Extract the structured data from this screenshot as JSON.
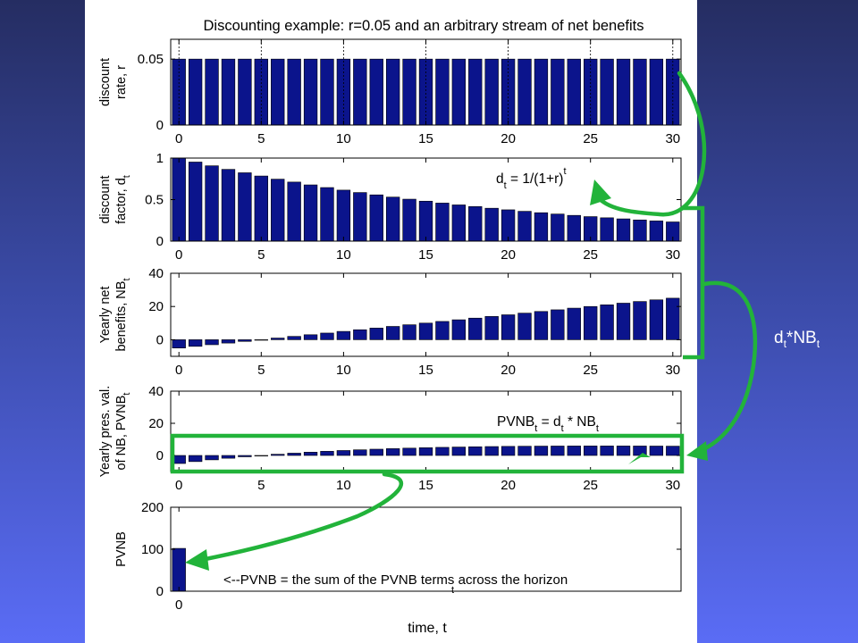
{
  "figure": {
    "title": "Discounting example: r=0.05 and an arbitrary stream of net benefits",
    "xlabel": "time, t",
    "side_label": {
      "main": "d",
      "sub1": "t",
      "mid": "*NB",
      "sub2": "t"
    }
  },
  "colors": {
    "bar": "#0b148c",
    "arrow": "#22b33a",
    "background_top": "#252d62",
    "background_bottom": "#5a6cf5",
    "panel": "#ffffff"
  },
  "chart_data": [
    {
      "type": "bar",
      "ylabel": [
        "discount",
        "rate, r"
      ],
      "x": [
        0,
        1,
        2,
        3,
        4,
        5,
        6,
        7,
        8,
        9,
        10,
        11,
        12,
        13,
        14,
        15,
        16,
        17,
        18,
        19,
        20,
        21,
        22,
        23,
        24,
        25,
        26,
        27,
        28,
        29,
        30
      ],
      "values": [
        0.05,
        0.05,
        0.05,
        0.05,
        0.05,
        0.05,
        0.05,
        0.05,
        0.05,
        0.05,
        0.05,
        0.05,
        0.05,
        0.05,
        0.05,
        0.05,
        0.05,
        0.05,
        0.05,
        0.05,
        0.05,
        0.05,
        0.05,
        0.05,
        0.05,
        0.05,
        0.05,
        0.05,
        0.05,
        0.05,
        0.05
      ],
      "xlim": [
        -0.5,
        30.5
      ],
      "ylim": [
        0,
        0.065
      ],
      "yticks": [
        0,
        0.05
      ],
      "ytick_labels": [
        "0",
        "0.05"
      ],
      "xticks": [
        0,
        5,
        10,
        15,
        20,
        25,
        30
      ],
      "xtick_labels": [
        "0",
        "5",
        "10",
        "15",
        "20",
        "25",
        "30"
      ],
      "vlines": [
        0,
        5,
        10,
        15,
        20,
        25,
        30
      ]
    },
    {
      "type": "bar",
      "ylabel": [
        "discount",
        "factor, d"
      ],
      "ylabel_sub": "t",
      "x": [
        0,
        1,
        2,
        3,
        4,
        5,
        6,
        7,
        8,
        9,
        10,
        11,
        12,
        13,
        14,
        15,
        16,
        17,
        18,
        19,
        20,
        21,
        22,
        23,
        24,
        25,
        26,
        27,
        28,
        29,
        30
      ],
      "values": [
        1.0,
        0.952,
        0.907,
        0.864,
        0.823,
        0.784,
        0.746,
        0.711,
        0.677,
        0.645,
        0.614,
        0.585,
        0.557,
        0.53,
        0.505,
        0.481,
        0.458,
        0.436,
        0.416,
        0.396,
        0.377,
        0.359,
        0.342,
        0.326,
        0.31,
        0.295,
        0.281,
        0.268,
        0.255,
        0.243,
        0.231
      ],
      "xlim": [
        -0.5,
        30.5
      ],
      "ylim": [
        0,
        1
      ],
      "yticks": [
        0,
        0.5,
        1
      ],
      "ytick_labels": [
        "0",
        "0.5",
        "1"
      ],
      "xticks": [
        0,
        5,
        10,
        15,
        20,
        25,
        30
      ],
      "xtick_labels": [
        "0",
        "5",
        "10",
        "15",
        "20",
        "25",
        "30"
      ],
      "annotation": {
        "a": "d",
        "a_sub": "t",
        "b": " = 1/(1+r)",
        "b_sup": "t",
        "c": ""
      }
    },
    {
      "type": "bar",
      "ylabel": [
        "Yearly net",
        "benefits, NB"
      ],
      "ylabel_sub": "t",
      "x": [
        0,
        1,
        2,
        3,
        4,
        5,
        6,
        7,
        8,
        9,
        10,
        11,
        12,
        13,
        14,
        15,
        16,
        17,
        18,
        19,
        20,
        21,
        22,
        23,
        24,
        25,
        26,
        27,
        28,
        29,
        30
      ],
      "values": [
        -5,
        -4,
        -3,
        -2,
        -1,
        0,
        1,
        2,
        3,
        4,
        5,
        6,
        7,
        8,
        9,
        10,
        11,
        12,
        13,
        14,
        15,
        16,
        17,
        18,
        19,
        20,
        21,
        22,
        23,
        24,
        25
      ],
      "xlim": [
        -0.5,
        30.5
      ],
      "ylim": [
        -10,
        40
      ],
      "yticks": [
        0,
        20,
        40
      ],
      "ytick_labels": [
        "0",
        "20",
        "40"
      ],
      "xticks": [
        0,
        5,
        10,
        15,
        20,
        25,
        30
      ],
      "xtick_labels": [
        "0",
        "5",
        "10",
        "15",
        "20",
        "25",
        "30"
      ]
    },
    {
      "type": "bar",
      "ylabel": [
        "Yearly pres. val.",
        "of NB, PVNB"
      ],
      "ylabel_sub": "t",
      "x": [
        0,
        1,
        2,
        3,
        4,
        5,
        6,
        7,
        8,
        9,
        10,
        11,
        12,
        13,
        14,
        15,
        16,
        17,
        18,
        19,
        20,
        21,
        22,
        23,
        24,
        25,
        26,
        27,
        28,
        29,
        30
      ],
      "values": [
        -5.0,
        -3.81,
        -2.72,
        -1.73,
        -0.82,
        0.0,
        0.75,
        1.42,
        2.03,
        2.58,
        3.07,
        3.51,
        3.9,
        4.24,
        4.55,
        4.81,
        5.04,
        5.24,
        5.4,
        5.54,
        5.65,
        5.74,
        5.81,
        5.86,
        5.89,
        5.9,
        5.9,
        5.89,
        5.87,
        5.84,
        5.78
      ],
      "xlim": [
        -0.5,
        30.5
      ],
      "ylim": [
        -10,
        40
      ],
      "yticks": [
        0,
        20,
        40
      ],
      "ytick_labels": [
        "0",
        "20",
        "40"
      ],
      "xticks": [
        0,
        5,
        10,
        15,
        20,
        25,
        30
      ],
      "xtick_labels": [
        "0",
        "5",
        "10",
        "15",
        "20",
        "25",
        "30"
      ],
      "annotation": {
        "a": "PVNB",
        "a_sub": "t",
        "b": " = d",
        "b_sub": "t",
        "c": " * NB",
        "c_sub": "t"
      }
    },
    {
      "type": "bar",
      "ylabel": [
        "PVNB"
      ],
      "x": [
        0
      ],
      "values": [
        102
      ],
      "xlim": [
        -0.5,
        30.5
      ],
      "ylim": [
        0,
        200
      ],
      "yticks": [
        0,
        100,
        200
      ],
      "ytick_labels": [
        "0",
        "100",
        "200"
      ],
      "xticks": [
        0
      ],
      "xtick_labels": [
        "0"
      ],
      "annotation": {
        "text": "<--PVNB = the sum of the PVNB terms across the horizon",
        "sub": "t"
      }
    }
  ]
}
